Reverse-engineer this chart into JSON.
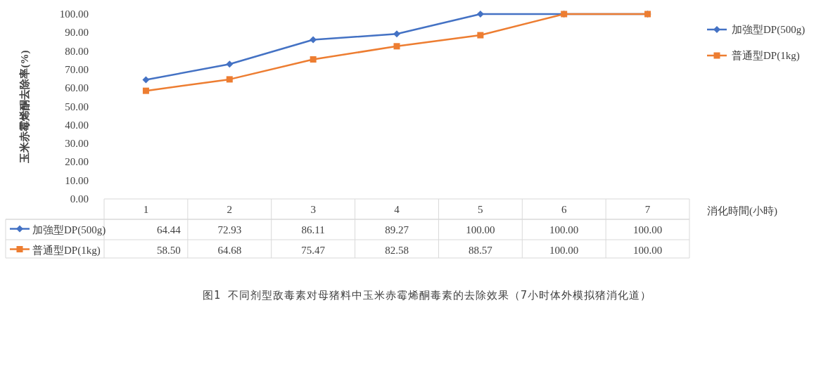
{
  "chart_data": {
    "type": "line",
    "ylabel": "玉米赤霉烯酮去除率(%)",
    "xlabel": "消化時間(小時)",
    "categories": [
      "1",
      "2",
      "3",
      "4",
      "5",
      "6",
      "7"
    ],
    "series": [
      {
        "name": "加強型DP(500g)",
        "color": "#4472c4",
        "marker": "diamond",
        "values": [
          64.44,
          72.93,
          86.11,
          89.27,
          100.0,
          100.0,
          100.0
        ],
        "value_labels": [
          "64.44",
          "72.93",
          "86.11",
          "89.27",
          "100.00",
          "100.00",
          "100.00"
        ]
      },
      {
        "name": "普通型DP(1kg)",
        "color": "#ed7d31",
        "marker": "square",
        "values": [
          58.5,
          64.68,
          75.47,
          82.58,
          88.57,
          100.0,
          100.0
        ],
        "value_labels": [
          "58.50",
          "64.68",
          "75.47",
          "82.58",
          "88.57",
          "100.00",
          "100.00"
        ]
      }
    ],
    "ylim": [
      0,
      100
    ],
    "yticks": [
      {
        "value": 0,
        "label": "0.00"
      },
      {
        "value": 10,
        "label": "10.00"
      },
      {
        "value": 20,
        "label": "20.00"
      },
      {
        "value": 30,
        "label": "30.00"
      },
      {
        "value": 40,
        "label": "40.00"
      },
      {
        "value": 50,
        "label": "50.00"
      },
      {
        "value": 60,
        "label": "60.00"
      },
      {
        "value": 70,
        "label": "70.00"
      },
      {
        "value": 80,
        "label": "80.00"
      },
      {
        "value": 90,
        "label": "90.00"
      },
      {
        "value": 100,
        "label": "100.00"
      }
    ],
    "grid": false,
    "legend": "right",
    "line_style": "solid",
    "annotations": [
      "图1 不同剂型敌毒素对母猪料中玉米赤霉烯酮毒素的去除效果（7小时体外模拟猪消化道）"
    ]
  }
}
